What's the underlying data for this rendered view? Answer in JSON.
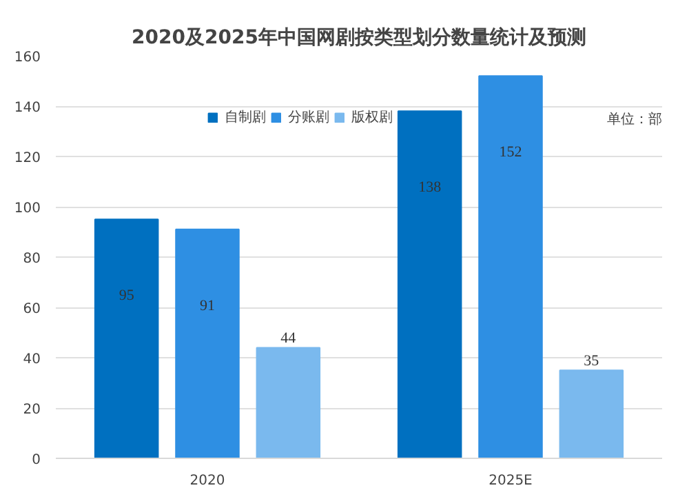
{
  "chart_data": {
    "type": "bar",
    "title": "2020及2025年中国网剧按类型划分数量统计及预测",
    "categories": [
      "2020",
      "2025E"
    ],
    "series": [
      {
        "name": "自制剧",
        "color": "#0070c0",
        "values": [
          95,
          138
        ]
      },
      {
        "name": "分账剧",
        "color": "#2e8fe3",
        "values": [
          91,
          152
        ]
      },
      {
        "name": "版权剧",
        "color": "#7ab9ee",
        "values": [
          44,
          35
        ]
      }
    ],
    "annotations": [
      "单位：部"
    ],
    "ylim": [
      0,
      160
    ],
    "yticks": [
      0,
      20,
      40,
      60,
      80,
      100,
      120,
      140,
      160
    ],
    "grid": "y",
    "legend": "top",
    "data_labels": true
  }
}
